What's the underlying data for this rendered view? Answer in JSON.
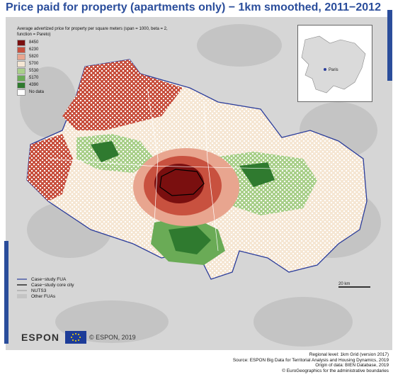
{
  "title": "Price paid for property (apartments only) − 1km smoothed, 2011−2012",
  "legend": {
    "title": "Average advertized price for property per square meters (span = 1000, beta = 2, function = Pareto)",
    "items": [
      {
        "label": "8450",
        "color": "#7a0f0f"
      },
      {
        "label": "6230",
        "color": "#c8513f"
      },
      {
        "label": "5820",
        "color": "#e8a58f"
      },
      {
        "label": "5700",
        "color": "#f5e6d3"
      },
      {
        "label": "5530",
        "color": "#a9cf8a"
      },
      {
        "label": "5170",
        "color": "#6aab56"
      },
      {
        "label": "4390",
        "color": "#2f7a2f"
      },
      {
        "label": "No data",
        "color": "#ffffff"
      }
    ]
  },
  "boundary_legend": {
    "fua": "Case−study FUA",
    "core": "Case−study core city",
    "nuts": "NUTS3",
    "other": "Other FUAs"
  },
  "inset": {
    "label": "Paris"
  },
  "scale": {
    "label": "20 km"
  },
  "logo": {
    "espon": "ESPON",
    "copyright": "© ESPON, 2019"
  },
  "footer": {
    "line1": "Regional level: 1km Grid (version 2017)",
    "line2": "Source: ESPON Big Data for Territorial Analysis and Housing Dynamics, 2019",
    "line3": "Origin of data: BIEN Database, 2019",
    "line4": "© EuroGeographics for the administrative boundaries"
  },
  "colors": {
    "title": "#2a4d9b",
    "background": "#d6d6d6",
    "fua_outline": "#2a3c9b"
  }
}
